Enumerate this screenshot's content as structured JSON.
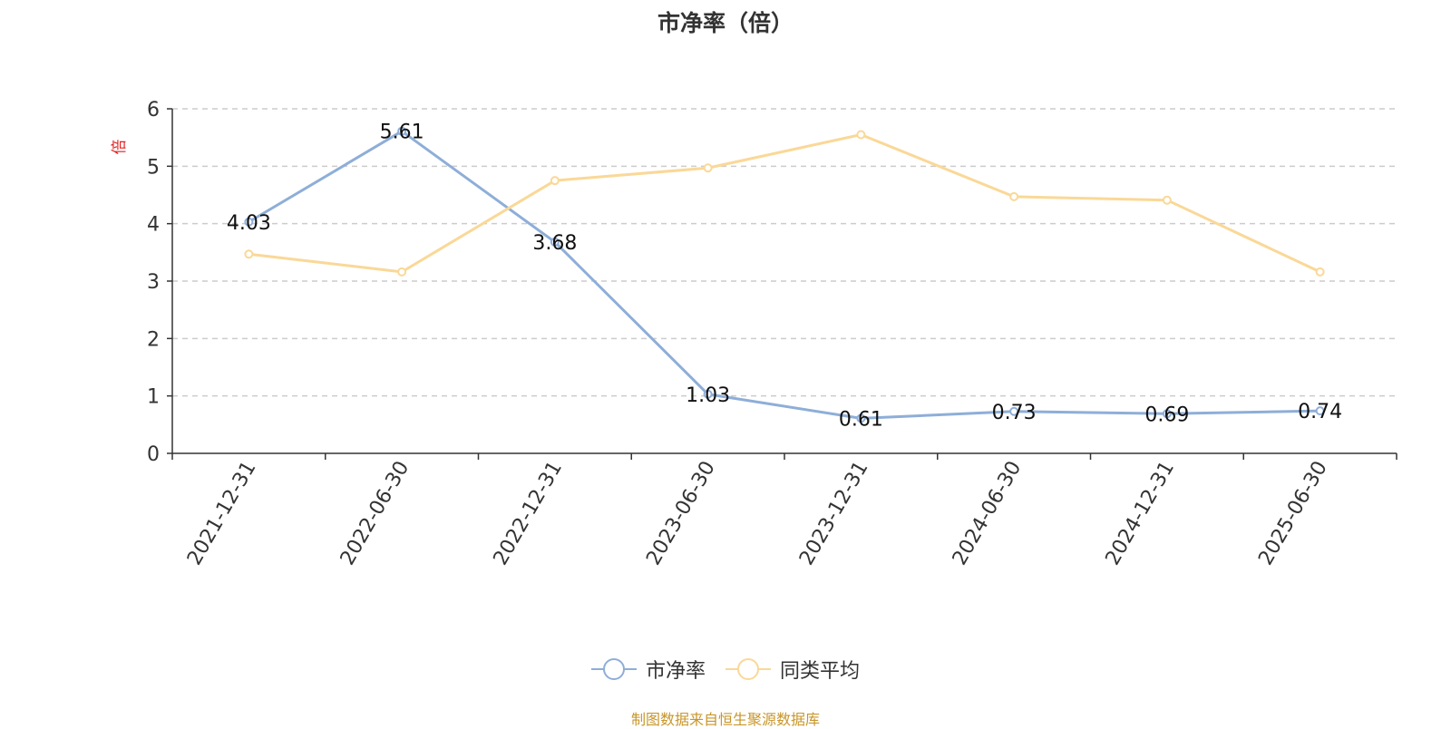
{
  "title": "市净率（倍）",
  "source_note": "制图数据来自恒生聚源数据库",
  "colors": {
    "pb": "#8eaed8",
    "avg": "#fad897",
    "unit": "#e02020",
    "axis": "#333333",
    "grid": "#cccccc",
    "source": "#c8962a"
  },
  "chart_data": {
    "type": "line",
    "title": "市净率（倍）",
    "ylabel": "倍",
    "ylim": [
      0,
      6
    ],
    "yticks": [
      0,
      1,
      2,
      3,
      4,
      5,
      6
    ],
    "grid": true,
    "legend_position": "bottom",
    "categories": [
      "2021-12-31",
      "2022-06-30",
      "2022-12-31",
      "2023-06-30",
      "2023-12-31",
      "2024-06-30",
      "2024-12-31",
      "2025-06-30"
    ],
    "series": [
      {
        "name": "市净率",
        "values": [
          4.03,
          5.61,
          3.68,
          1.03,
          0.61,
          0.73,
          0.69,
          0.74
        ],
        "labels": [
          "4.03",
          "5.61",
          "3.68",
          "1.03",
          "0.61",
          "0.73",
          "0.69",
          "0.74"
        ]
      },
      {
        "name": "同类平均",
        "values": [
          3.47,
          3.16,
          4.75,
          4.97,
          5.55,
          4.47,
          4.41,
          3.16
        ]
      }
    ]
  }
}
